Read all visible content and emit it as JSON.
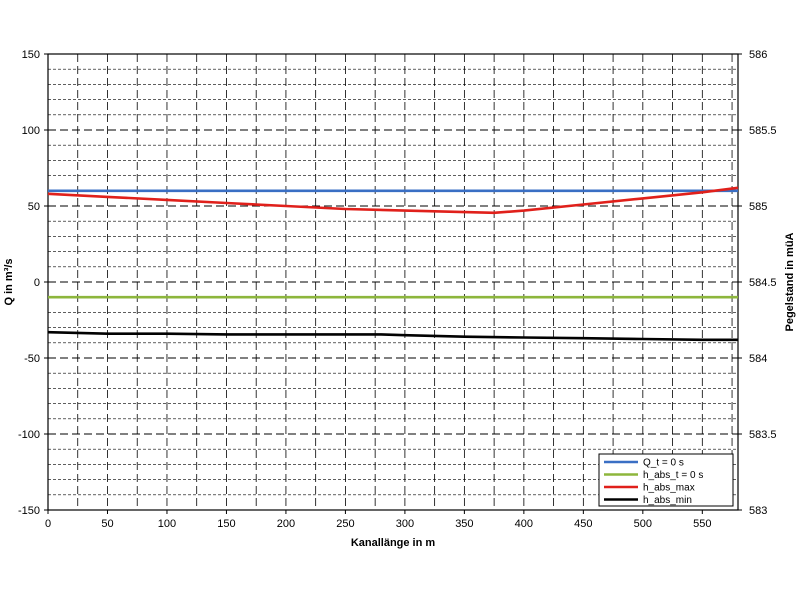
{
  "chart_data": {
    "type": "line",
    "xlabel": "Kanallänge in m",
    "ylabel_left": "Q in m³/s",
    "ylabel_right": "Pegelstand in müA",
    "xlim": [
      0,
      580
    ],
    "ylim_left": [
      -150,
      150
    ],
    "ylim_right": [
      583,
      586
    ],
    "x_ticks": [
      "0",
      "50",
      "100",
      "150",
      "200",
      "250",
      "300",
      "350",
      "400",
      "450",
      "500",
      "550"
    ],
    "y_left_ticks": [
      "150",
      "100",
      "50",
      "0",
      "-50",
      "-100",
      "-150"
    ],
    "y_right_ticks": [
      "586",
      "585.5",
      "585",
      "584.5",
      "584",
      "583.5",
      "583"
    ],
    "grid": true,
    "legend_position": "bottom-right",
    "series": [
      {
        "name": "Q_t = 0 s",
        "axis": "left",
        "color": "#3a6fc4",
        "x": [
          0,
          580
        ],
        "y": [
          60,
          60
        ]
      },
      {
        "name": "h_abs_t = 0 s",
        "axis": "right",
        "color": "#8db63c",
        "x": [
          0,
          580
        ],
        "y": [
          584.4,
          584.4
        ]
      },
      {
        "name": "h_abs_max",
        "axis": "right",
        "color": "#e0201b",
        "x": [
          0,
          50,
          100,
          150,
          200,
          250,
          300,
          350,
          375,
          400,
          450,
          500,
          550,
          580
        ],
        "y": [
          585.08,
          585.06,
          585.04,
          585.02,
          585.0,
          584.98,
          584.97,
          584.96,
          584.955,
          584.97,
          585.01,
          585.05,
          585.09,
          585.12
        ]
      },
      {
        "name": "h_abs_min",
        "axis": "right",
        "color": "#000000",
        "x": [
          0,
          50,
          100,
          150,
          200,
          250,
          280,
          300,
          350,
          400,
          450,
          500,
          550,
          580
        ],
        "y": [
          584.17,
          584.16,
          584.16,
          584.155,
          584.155,
          584.155,
          584.155,
          584.15,
          584.14,
          584.135,
          584.13,
          584.125,
          584.12,
          584.12
        ]
      }
    ]
  }
}
